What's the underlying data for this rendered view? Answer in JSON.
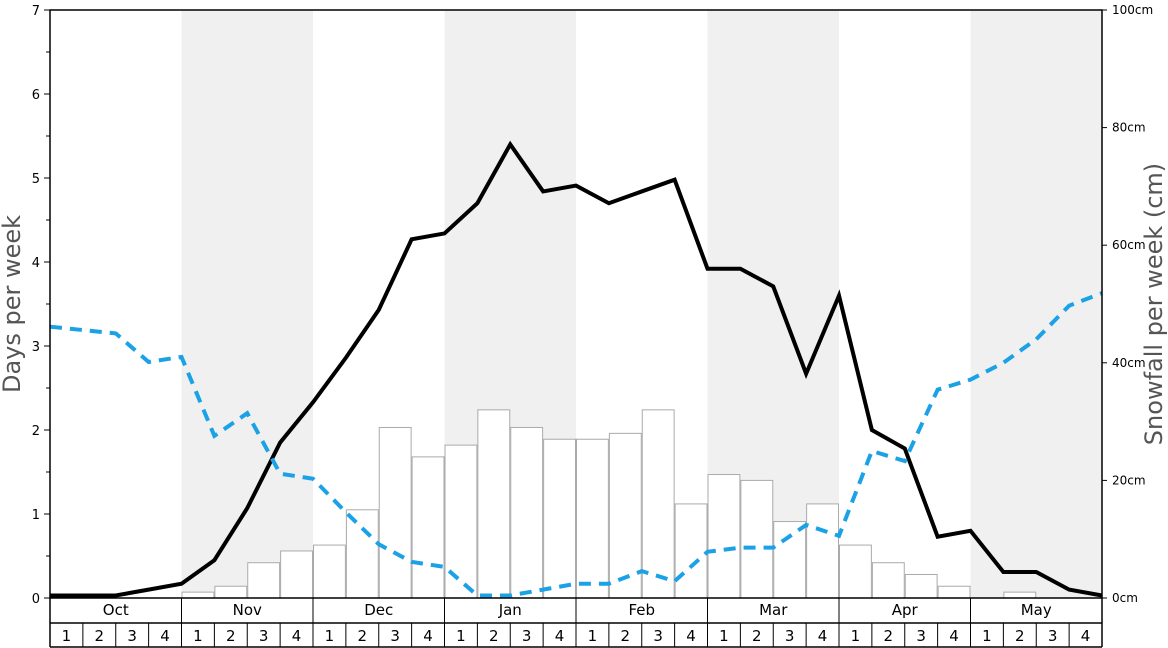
{
  "chart_data": {
    "type": "bar",
    "months": [
      "Oct",
      "Nov",
      "Dec",
      "Jan",
      "Feb",
      "Mar",
      "Apr",
      "May"
    ],
    "weeks": [
      "1",
      "2",
      "3",
      "4"
    ],
    "ylabel": "Days per week",
    "ylabel_right": "Snowfall per week (cm)",
    "ylim": [
      0,
      7
    ],
    "ylim_right": [
      0,
      100
    ],
    "yticks": [
      "0",
      "1",
      "2",
      "3",
      "4",
      "5",
      "6",
      "7"
    ],
    "yticks_right": [
      "0cm",
      "20cm",
      "40cm",
      "60cm",
      "80cm",
      "100cm"
    ],
    "series": [
      {
        "axis": "right",
        "style": "bars",
        "values": [
          0,
          0,
          0,
          0,
          1,
          2,
          6,
          8,
          9,
          15,
          29,
          24,
          26,
          32,
          29,
          27,
          27,
          28,
          32,
          16,
          21,
          20,
          13,
          16,
          9,
          6,
          4,
          2,
          0,
          1,
          0,
          0
        ]
      },
      {
        "axis": "left",
        "style": "solid",
        "values": [
          0.03,
          0.03,
          0.03,
          0.1,
          0.17,
          0.45,
          1.07,
          1.85,
          2.33,
          2.86,
          3.43,
          4.27,
          4.34,
          4.7,
          5.4,
          4.84,
          4.91,
          4.7,
          4.84,
          4.98,
          3.92,
          3.92,
          3.71,
          2.67,
          3.6,
          2.0,
          1.78,
          0.73,
          0.8,
          0.31,
          0.31,
          0.1,
          0.03
        ]
      },
      {
        "axis": "left",
        "style": "dashed",
        "values": [
          3.23,
          3.19,
          3.15,
          2.81,
          2.87,
          1.93,
          2.2,
          1.48,
          1.42,
          1.02,
          0.64,
          0.43,
          0.37,
          0.03,
          0.03,
          0.1,
          0.17,
          0.17,
          0.32,
          0.2,
          0.55,
          0.6,
          0.6,
          0.87,
          0.74,
          1.75,
          1.63,
          2.48,
          2.6,
          2.8,
          3.08,
          3.48,
          3.63
        ]
      }
    ],
    "colors": {
      "bars_fill": "#ffffff",
      "bars_stroke": "#aaaaaa",
      "solid_line": "#000000",
      "dashed_line": "#1aa1e6",
      "band_shade": "#f0f0f0",
      "axis": "#000000"
    }
  }
}
